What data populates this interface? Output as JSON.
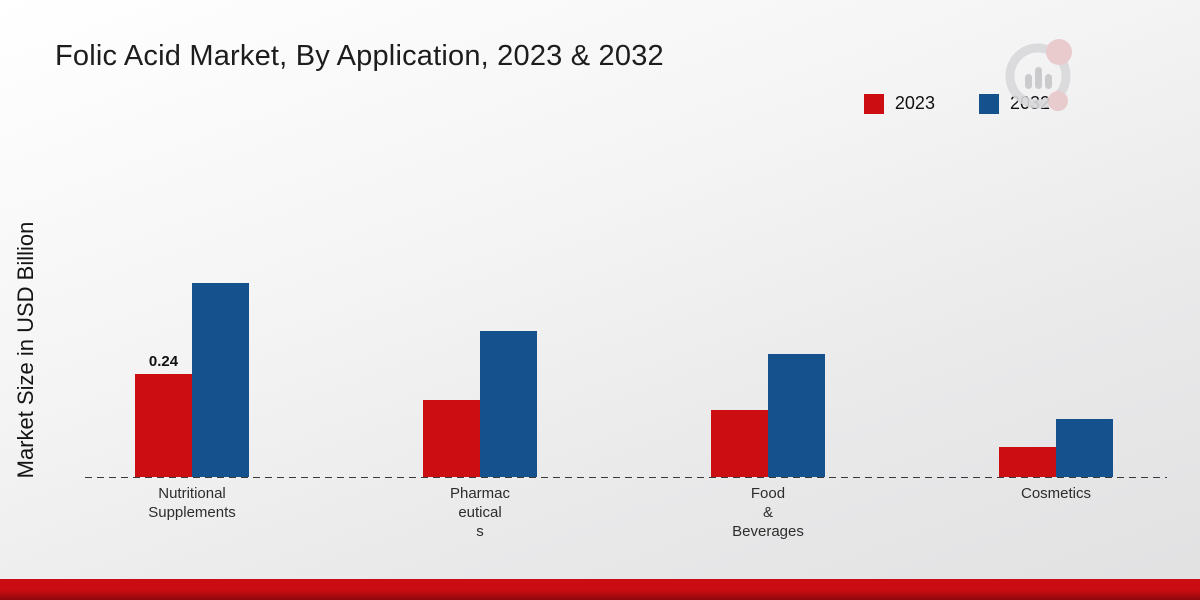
{
  "title": "Folic Acid Market, By Application, 2023 & 2032",
  "ylabel": "Market Size in USD Billion",
  "legend": [
    {
      "label": "2023",
      "color": "#cc0e13"
    },
    {
      "label": "2032",
      "color": "#15518c"
    }
  ],
  "colors": {
    "bar_2023": "#cc0e13",
    "bar_2032": "#15518c",
    "bottom_band": "#c90d12",
    "baseline": "#3a3a3a"
  },
  "chart_data": {
    "type": "bar",
    "categories": [
      "Nutritional Supplements",
      "Pharmaceuticals",
      "Food & Beverages",
      "Cosmetics"
    ],
    "category_display": [
      [
        "Nutritional",
        "Supplements"
      ],
      [
        "Pharmac",
        "eutical",
        "s"
      ],
      [
        "Food",
        "&",
        "Beverages"
      ],
      [
        "Cosmetics"
      ]
    ],
    "series": [
      {
        "name": "2023",
        "color": "#cc0e13",
        "values": [
          0.24,
          0.18,
          0.155,
          0.07
        ]
      },
      {
        "name": "2032",
        "color": "#15518c",
        "values": [
          0.45,
          0.34,
          0.285,
          0.135
        ]
      }
    ],
    "ylim": [
      0,
      0.5
    ],
    "xlabel": "",
    "ylabel": "Market Size in USD Billion",
    "grid": false,
    "legend_position": "top-right",
    "data_labels": [
      {
        "series": "2023",
        "category": "Nutritional Supplements",
        "text": "0.24"
      }
    ]
  }
}
